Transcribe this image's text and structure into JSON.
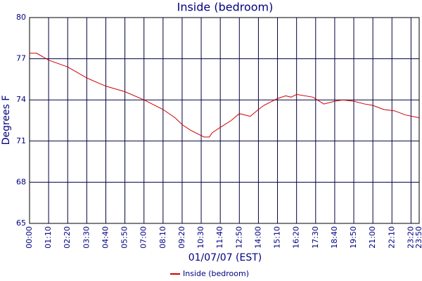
{
  "chart_data": {
    "type": "line",
    "title": "Inside (bedroom)",
    "x_label": "01/07/07 (EST)",
    "y_label": "Degrees F",
    "x": [
      0,
      26,
      70,
      140,
      210,
      280,
      350,
      420,
      490,
      534,
      560,
      590,
      640,
      660,
      670,
      700,
      740,
      770,
      810,
      840,
      860,
      890,
      910,
      940,
      960,
      980,
      1040,
      1080,
      1120,
      1150,
      1190,
      1230,
      1260,
      1300,
      1340,
      1380,
      1430
    ],
    "series": [
      {
        "name": "Inside (bedroom)",
        "color": "#cc0000",
        "values": [
          77.4,
          77.4,
          76.9,
          76.4,
          75.6,
          75.0,
          74.6,
          74.0,
          73.3,
          72.7,
          72.2,
          71.8,
          71.3,
          71.3,
          71.6,
          72.0,
          72.5,
          73.0,
          72.8,
          73.3,
          73.6,
          73.9,
          74.1,
          74.3,
          74.2,
          74.4,
          74.2,
          73.7,
          73.9,
          74.0,
          73.9,
          73.7,
          73.6,
          73.3,
          73.2,
          72.9,
          72.7
        ]
      }
    ],
    "xlim": [
      0,
      1430
    ],
    "xticks": [
      {
        "value": 0,
        "label": "00:00"
      },
      {
        "value": 70,
        "label": "01:10"
      },
      {
        "value": 140,
        "label": "02:20"
      },
      {
        "value": 210,
        "label": "03:30"
      },
      {
        "value": 280,
        "label": "04:40"
      },
      {
        "value": 350,
        "label": "05:50"
      },
      {
        "value": 420,
        "label": "07:00"
      },
      {
        "value": 490,
        "label": "08:10"
      },
      {
        "value": 560,
        "label": "09:20"
      },
      {
        "value": 630,
        "label": "10:30"
      },
      {
        "value": 700,
        "label": "11:40"
      },
      {
        "value": 770,
        "label": "12:50"
      },
      {
        "value": 840,
        "label": "14:00"
      },
      {
        "value": 910,
        "label": "15:10"
      },
      {
        "value": 980,
        "label": "16:20"
      },
      {
        "value": 1050,
        "label": "17:30"
      },
      {
        "value": 1120,
        "label": "18:40"
      },
      {
        "value": 1190,
        "label": "19:50"
      },
      {
        "value": 1260,
        "label": "21:00"
      },
      {
        "value": 1330,
        "label": "22:10"
      },
      {
        "value": 1400,
        "label": "23:20"
      },
      {
        "value": 1430,
        "label": "23:50"
      }
    ],
    "ylim": [
      65,
      80
    ],
    "yticks": [
      65,
      68,
      71,
      74,
      77,
      80
    ],
    "grid": true
  }
}
